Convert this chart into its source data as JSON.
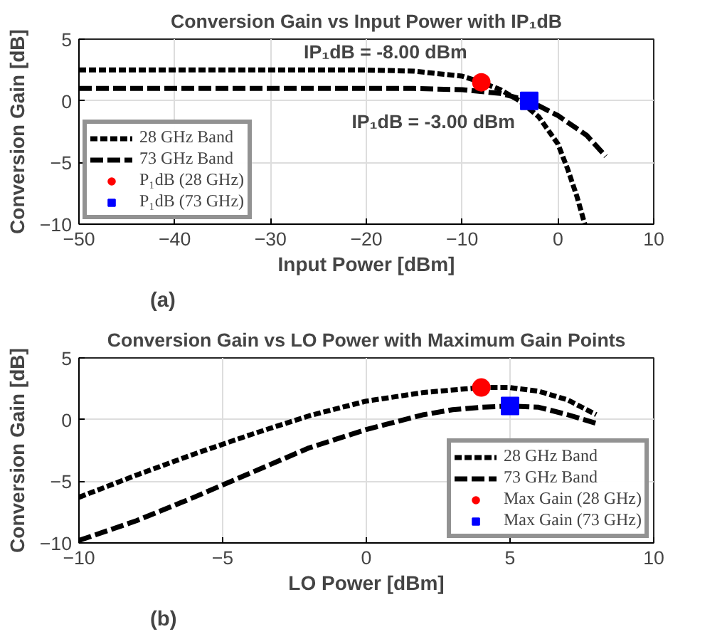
{
  "chart_data": [
    {
      "type": "line",
      "title": "Conversion Gain vs Input Power with IP₁dB",
      "xlabel": "Input Power [dBm]",
      "ylabel": "Conversion Gain [dB]",
      "xlim": [
        -50,
        10
      ],
      "ylim": [
        -10,
        5
      ],
      "xticks": [
        -50,
        -40,
        -30,
        -20,
        -10,
        0,
        10
      ],
      "yticks": [
        -10,
        -5,
        0,
        5
      ],
      "grid": true,
      "legend": "bottom left",
      "line_style": "dashed",
      "series": [
        {
          "name": "28 GHz Band",
          "color": "#000000",
          "x": [
            -50,
            -40,
            -30,
            -20,
            -15,
            -10,
            -8,
            -6,
            -4,
            -2,
            0,
            1,
            2,
            2.8
          ],
          "values": [
            2.5,
            2.5,
            2.5,
            2.5,
            2.4,
            2.0,
            1.5,
            0.9,
            0.0,
            -1.3,
            -3.5,
            -5.5,
            -7.8,
            -10
          ]
        },
        {
          "name": "73 GHz Band",
          "color": "#000000",
          "x": [
            -50,
            -40,
            -30,
            -20,
            -15,
            -10,
            -6,
            -3,
            0,
            3,
            5
          ],
          "values": [
            1.0,
            1.0,
            1.0,
            1.0,
            1.0,
            0.9,
            0.6,
            0.0,
            -1.2,
            -2.8,
            -4.5
          ]
        },
        {
          "name": "P₁dB (28 GHz)",
          "type": "scatter",
          "marker": "circle",
          "color": "#ff0000",
          "x": [
            -8
          ],
          "values": [
            1.5
          ]
        },
        {
          "name": "P₁dB (73 GHz)",
          "type": "scatter",
          "marker": "square",
          "color": "#0000ff",
          "x": [
            -3
          ],
          "values": [
            0.0
          ]
        }
      ],
      "annotations": [
        {
          "text": "IP₁dB = -8.00 dBm",
          "x": -8,
          "y": 1.5
        },
        {
          "text": "IP₁dB = -3.00 dBm",
          "x": -3,
          "y": 0.0
        },
        "(a)"
      ]
    },
    {
      "type": "line",
      "title": "Conversion Gain vs LO Power with Maximum Gain Points",
      "xlabel": "LO Power [dBm]",
      "ylabel": "Conversion Gain [dB]",
      "xlim": [
        -10,
        10
      ],
      "ylim": [
        -10,
        5
      ],
      "xticks": [
        -10,
        -5,
        0,
        5,
        10
      ],
      "yticks": [
        -10,
        -5,
        0,
        5
      ],
      "grid": true,
      "legend": "bottom right",
      "line_style": "dashed",
      "series": [
        {
          "name": "28 GHz Band",
          "color": "#000000",
          "x": [
            -10,
            -8,
            -6,
            -4,
            -2,
            0,
            2,
            4,
            5,
            6,
            7,
            8
          ],
          "values": [
            -6.3,
            -4.5,
            -2.8,
            -1.2,
            0.3,
            1.5,
            2.2,
            2.6,
            2.6,
            2.3,
            1.6,
            0.4
          ]
        },
        {
          "name": "73 GHz Band",
          "color": "#000000",
          "x": [
            -10,
            -8,
            -6,
            -4,
            -2,
            0,
            2,
            3,
            4,
            5,
            6,
            7,
            8
          ],
          "values": [
            -9.8,
            -8.2,
            -6.3,
            -4.3,
            -2.3,
            -0.8,
            0.4,
            0.8,
            1.0,
            1.1,
            1.0,
            0.4,
            -0.3
          ]
        },
        {
          "name": "Max Gain (28 GHz)",
          "type": "scatter",
          "marker": "circle",
          "color": "#ff0000",
          "x": [
            4
          ],
          "values": [
            2.6
          ]
        },
        {
          "name": "Max Gain (73 GHz)",
          "type": "scatter",
          "marker": "square",
          "color": "#0000ff",
          "x": [
            5
          ],
          "values": [
            1.1
          ]
        }
      ],
      "annotations": [
        "(b)"
      ]
    }
  ]
}
